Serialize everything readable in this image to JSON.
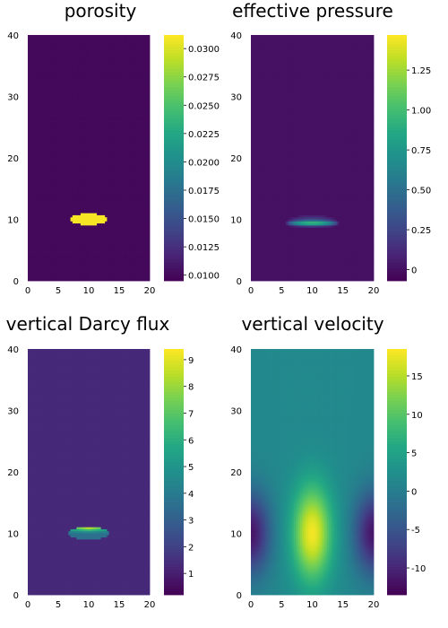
{
  "chart_data": [
    {
      "type": "heatmap",
      "title": "porosity",
      "xlim": [
        0,
        20
      ],
      "ylim": [
        0,
        40
      ],
      "xticks": [
        "0",
        "5",
        "10",
        "15",
        "20"
      ],
      "yticks": [
        "0",
        "10",
        "20",
        "30",
        "40"
      ],
      "field": {
        "kind": "blob",
        "background": 0.01,
        "peak": 0.031,
        "center": [
          10,
          10
        ],
        "semi_axes": [
          3.2,
          0.9
        ]
      },
      "colorbar": {
        "min": 0.0095,
        "max": 0.0312,
        "ticks": [
          "0.0100",
          "0.0125",
          "0.0150",
          "0.0175",
          "0.0200",
          "0.0225",
          "0.0250",
          "0.0275",
          "0.0300"
        ],
        "tick_values": [
          0.01,
          0.0125,
          0.015,
          0.0175,
          0.02,
          0.0225,
          0.025,
          0.0275,
          0.03
        ]
      }
    },
    {
      "type": "heatmap",
      "title": "effective pressure",
      "xlim": [
        0,
        20
      ],
      "ylim": [
        0,
        40
      ],
      "xticks": [
        "0",
        "5",
        "10",
        "15",
        "20"
      ],
      "yticks": [
        "0",
        "10",
        "20",
        "30",
        "40"
      ],
      "field": {
        "kind": "band",
        "background": 0.0,
        "peak": 1.45,
        "center": [
          10,
          9.3
        ],
        "semi_axes": [
          4.5,
          1.4
        ]
      },
      "colorbar": {
        "min": -0.07,
        "max": 1.47,
        "ticks": [
          "0",
          "0.25",
          "0.50",
          "0.75",
          "1.00",
          "1.25"
        ],
        "tick_values": [
          0,
          0.25,
          0.5,
          0.75,
          1.0,
          1.25
        ]
      }
    },
    {
      "type": "heatmap",
      "title": "vertical Darcy flux",
      "xlim": [
        0,
        20
      ],
      "ylim": [
        0,
        40
      ],
      "xticks": [
        "0",
        "5",
        "10",
        "15",
        "20"
      ],
      "yticks": [
        "0",
        "10",
        "20",
        "30",
        "40"
      ],
      "field": {
        "kind": "flux",
        "background": 1.3,
        "peak": 9.3,
        "center": [
          10,
          10
        ],
        "semi_axes": [
          3.4,
          1.0
        ]
      },
      "colorbar": {
        "min": 0.2,
        "max": 9.4,
        "ticks": [
          "1",
          "2",
          "3",
          "4",
          "5",
          "6",
          "7",
          "8",
          "9"
        ],
        "tick_values": [
          1,
          2,
          3,
          4,
          5,
          6,
          7,
          8,
          9
        ]
      }
    },
    {
      "type": "heatmap",
      "title": "vertical velocity",
      "xlim": [
        0,
        20
      ],
      "ylim": [
        0,
        40
      ],
      "xticks": [
        "0",
        "5",
        "10",
        "15",
        "20"
      ],
      "yticks": [
        "0",
        "10",
        "20",
        "30",
        "40"
      ],
      "field": {
        "kind": "velocity",
        "background": 1.5,
        "peak": 18.0,
        "trough": -13.0,
        "center": [
          10,
          10
        ]
      },
      "colorbar": {
        "min": -13.5,
        "max": 18.5,
        "ticks": [
          "-10",
          "-5",
          "0",
          "5",
          "10",
          "15"
        ],
        "tick_values": [
          -10,
          -5,
          0,
          5,
          10,
          15
        ]
      }
    }
  ]
}
